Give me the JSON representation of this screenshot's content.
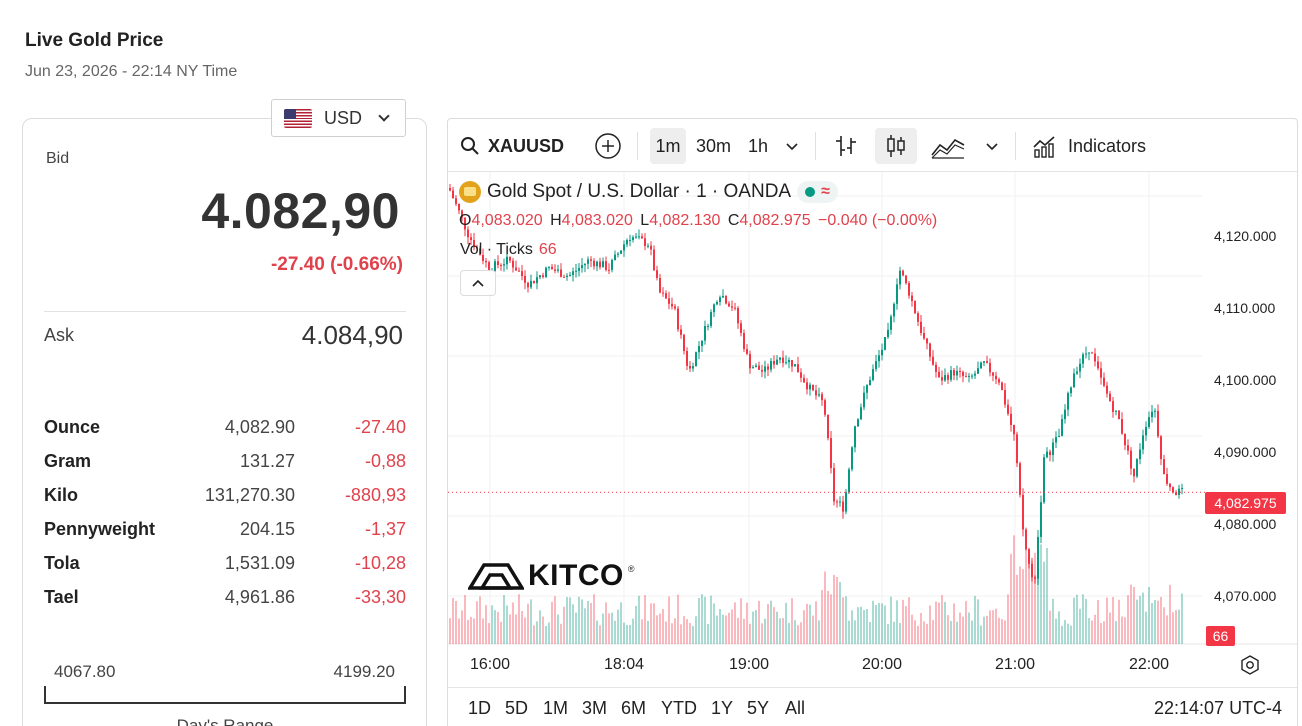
{
  "header": {
    "title": "Live Gold Price",
    "datetime": "Jun 23, 2026 - 22:14 NY Time"
  },
  "currency": {
    "selected": "USD",
    "flag": "us-flag-icon"
  },
  "quote": {
    "bid_label": "Bid",
    "bid": "4.082,90",
    "change": "-27.40 (-0.66%)",
    "ask_label": "Ask",
    "ask": "4.084,90"
  },
  "units": [
    {
      "name": "Ounce",
      "price": "4,082.90",
      "change": "-27.40"
    },
    {
      "name": "Gram",
      "price": "131.27",
      "change": "-0,88"
    },
    {
      "name": "Kilo",
      "price": "131,270.30",
      "change": "-880,93"
    },
    {
      "name": "Pennyweight",
      "price": "204.15",
      "change": "-1,37"
    },
    {
      "name": "Tola",
      "price": "1,531.09",
      "change": "-10,28"
    },
    {
      "name": "Tael",
      "price": "4,961.86",
      "change": "-33,30"
    }
  ],
  "day_range": {
    "low": "4067.80",
    "high": "4199.20",
    "label": "Day's Range"
  },
  "toolbar": {
    "symbol": "XAUUSD",
    "intervals": [
      "1m",
      "30m",
      "1h"
    ],
    "active_interval": "1m",
    "indicators_label": "Indicators"
  },
  "legend": {
    "title": "Gold Spot / U.S. Dollar · 1 · OANDA",
    "o_label": "O",
    "o": "4,083.020",
    "h_label": "H",
    "h": "4,083.020",
    "l_label": "L",
    "l": "4,082.130",
    "c_label": "C",
    "c": "4,082.975",
    "chg": "−0.040 (−0.00%)",
    "vol_label": "Vol · Ticks",
    "vol_value": "66"
  },
  "watermark": "KITCO",
  "last_price_tag": "4,082.975",
  "volume_tag": "66",
  "range_buttons": [
    "1D",
    "5D",
    "1M",
    "3M",
    "6M",
    "YTD",
    "1Y",
    "5Y",
    "All"
  ],
  "clock": "22:14:07 UTC-4",
  "colors": {
    "up": "#089981",
    "down": "#f23645",
    "accent_red": "#e0424c"
  },
  "chart_data": {
    "type": "candlestick",
    "symbol": "XAUUSD",
    "interval": "1m",
    "x_ticks": [
      "16:00",
      "18:04",
      "19:00",
      "20:00",
      "21:00",
      "22:00"
    ],
    "y_ticks": [
      "4,120.000",
      "4,110.000",
      "4,100.000",
      "4,090.000",
      "4,080.000",
      "4,070.000"
    ],
    "ylim": [
      4064,
      4123
    ],
    "last_price": 4082.975,
    "price_path": [
      [
        0,
        4121
      ],
      [
        20,
        4115
      ],
      [
        40,
        4111
      ],
      [
        60,
        4112
      ],
      [
        80,
        4109
      ],
      [
        100,
        4111
      ],
      [
        120,
        4110
      ],
      [
        140,
        4112
      ],
      [
        160,
        4111
      ],
      [
        180,
        4115
      ],
      [
        200,
        4114
      ],
      [
        210,
        4108
      ],
      [
        225,
        4106
      ],
      [
        240,
        4098
      ],
      [
        255,
        4103
      ],
      [
        270,
        4108
      ],
      [
        285,
        4106
      ],
      [
        300,
        4099
      ],
      [
        315,
        4098
      ],
      [
        330,
        4100
      ],
      [
        345,
        4099
      ],
      [
        360,
        4096
      ],
      [
        375,
        4094
      ],
      [
        385,
        4082
      ],
      [
        395,
        4081
      ],
      [
        405,
        4091
      ],
      [
        420,
        4097
      ],
      [
        430,
        4100
      ],
      [
        440,
        4103
      ],
      [
        450,
        4111
      ],
      [
        460,
        4108
      ],
      [
        475,
        4102
      ],
      [
        490,
        4097
      ],
      [
        505,
        4098
      ],
      [
        520,
        4097
      ],
      [
        535,
        4099
      ],
      [
        550,
        4097
      ],
      [
        565,
        4090
      ],
      [
        575,
        4077
      ],
      [
        585,
        4071
      ],
      [
        595,
        4087
      ],
      [
        610,
        4090
      ],
      [
        625,
        4098
      ],
      [
        640,
        4101
      ],
      [
        655,
        4096
      ],
      [
        670,
        4092
      ],
      [
        685,
        4085
      ],
      [
        695,
        4091
      ],
      [
        705,
        4094
      ],
      [
        715,
        4085
      ],
      [
        725,
        4083
      ],
      [
        735,
        4082.975
      ]
    ],
    "volume_series": {
      "name": "Vol · Ticks",
      "last": 66
    }
  }
}
